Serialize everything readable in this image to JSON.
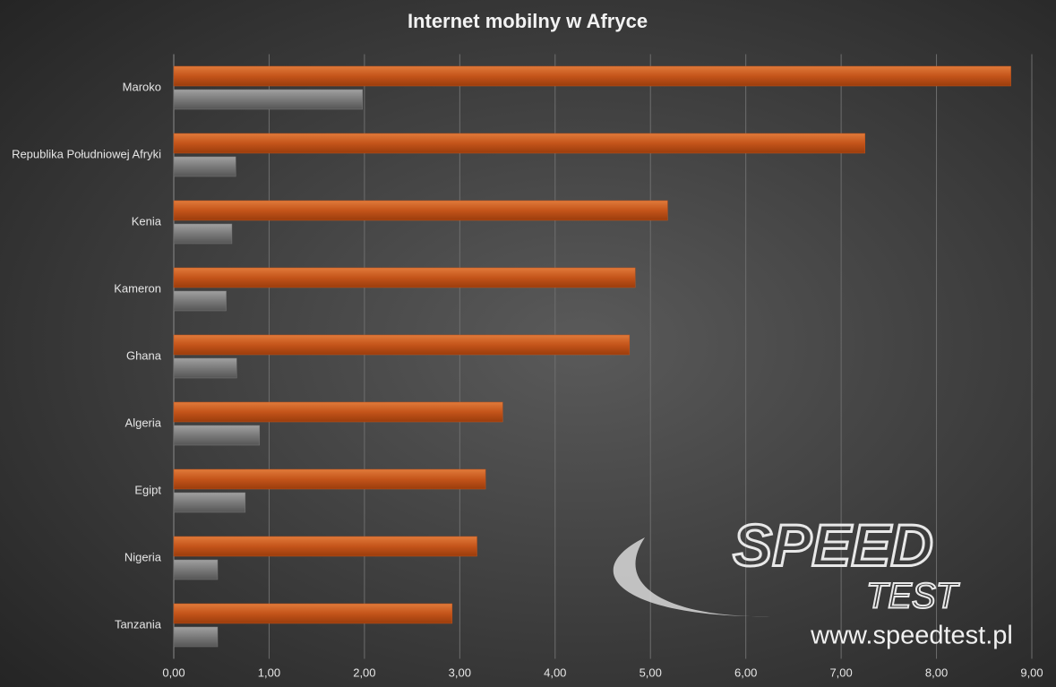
{
  "chart_data": {
    "type": "hbar",
    "title": "Internet mobilny w Afryce",
    "categories": [
      "Maroko",
      "Republika Południowej Afryki",
      "Kenia",
      "Kameron",
      "Ghana",
      "Algeria",
      "Egipt",
      "Nigeria",
      "Tanzania"
    ],
    "series": [
      {
        "color": "#c4541a",
        "values": [
          8.78,
          7.25,
          5.18,
          4.84,
          4.78,
          3.45,
          3.27,
          3.18,
          2.92
        ]
      },
      {
        "color": "#7a7a7a",
        "values": [
          1.98,
          0.65,
          0.61,
          0.55,
          0.66,
          0.9,
          0.75,
          0.46,
          0.46
        ]
      }
    ],
    "xlim": [
      0,
      9
    ],
    "xticks": [
      {
        "value": 0,
        "label": "0,00"
      },
      {
        "value": 1,
        "label": "1,00"
      },
      {
        "value": 2,
        "label": "2,00"
      },
      {
        "value": 3,
        "label": "3,00"
      },
      {
        "value": 4,
        "label": "4,00"
      },
      {
        "value": 5,
        "label": "5,00"
      },
      {
        "value": 6,
        "label": "6,00"
      },
      {
        "value": 7,
        "label": "7,00"
      },
      {
        "value": 8,
        "label": "8,00"
      },
      {
        "value": 9,
        "label": "9,00"
      }
    ],
    "grid": true,
    "annotations": [
      "SPEED",
      "TEST",
      "www.speedtest.pl"
    ]
  }
}
